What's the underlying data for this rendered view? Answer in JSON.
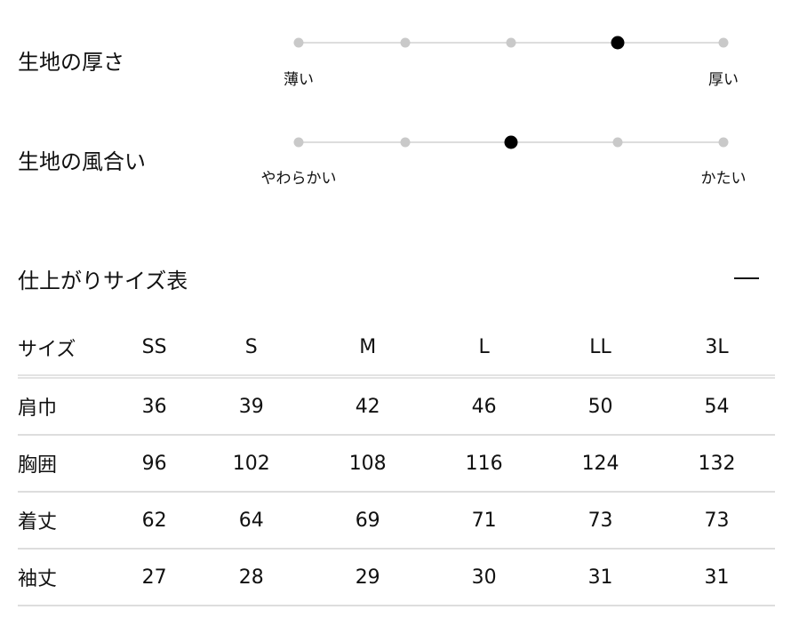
{
  "attributes": [
    {
      "label": "生地の厚さ",
      "min_label": "薄い",
      "max_label": "厚い",
      "steps": 5,
      "value": 4
    },
    {
      "label": "生地の風合い",
      "min_label": "やわらかい",
      "max_label": "かたい",
      "steps": 5,
      "value": 3
    }
  ],
  "size_table": {
    "title": "仕上がりサイズ表",
    "collapse_icon": "minus-icon",
    "headers": [
      "サイズ",
      "SS",
      "S",
      "M",
      "L",
      "LL",
      "3L"
    ],
    "rows": [
      [
        "肩巾",
        "36",
        "39",
        "42",
        "46",
        "50",
        "54"
      ],
      [
        "胸囲",
        "96",
        "102",
        "108",
        "116",
        "124",
        "132"
      ],
      [
        "着丈",
        "62",
        "64",
        "69",
        "71",
        "73",
        "73"
      ],
      [
        "袖丈",
        "27",
        "28",
        "29",
        "30",
        "31",
        "31"
      ]
    ]
  }
}
